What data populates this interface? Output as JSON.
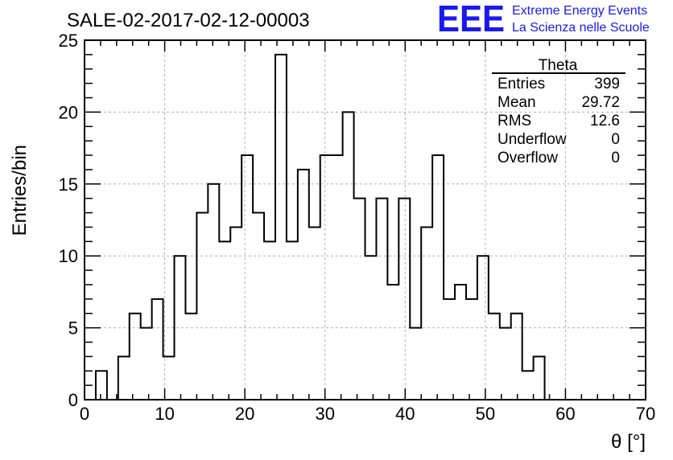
{
  "chart_data": {
    "type": "histogram",
    "title": "SALE-02-2017-02-12-00003",
    "xlabel": "θ [°]",
    "ylabel": "Entries/bin",
    "xlim": [
      0,
      70
    ],
    "ylim": [
      0,
      25
    ],
    "bin_width": 1.4,
    "bin_edges_start": 1.4,
    "values": [
      2,
      0,
      3,
      6,
      5,
      7,
      3,
      10,
      6,
      13,
      15,
      11,
      12,
      17,
      13,
      11,
      24,
      11,
      16,
      12,
      17,
      17,
      20,
      14,
      10,
      14,
      8,
      14,
      5,
      12,
      17,
      7,
      8,
      7,
      10,
      6,
      5,
      6,
      2,
      3
    ],
    "x_ticks": [
      "0",
      "10",
      "20",
      "30",
      "40",
      "50",
      "60",
      "70"
    ],
    "y_ticks": [
      "0",
      "5",
      "10",
      "15",
      "20",
      "25"
    ],
    "grid": true,
    "line_color": "#000000",
    "grid_color": "#b0b0b0"
  },
  "logo": {
    "mark": "EEE",
    "line1": "Extreme Energy Events",
    "line2": "La Scienza nelle Scuole",
    "color": "#1a1aee"
  },
  "stats_box": {
    "name": "Theta",
    "rows": [
      {
        "label": "Entries",
        "value": "399"
      },
      {
        "label": "Mean",
        "value": "29.72"
      },
      {
        "label": "RMS",
        "value": "12.6"
      },
      {
        "label": "Underflow",
        "value": "0"
      },
      {
        "label": "Overflow",
        "value": "0"
      }
    ]
  }
}
